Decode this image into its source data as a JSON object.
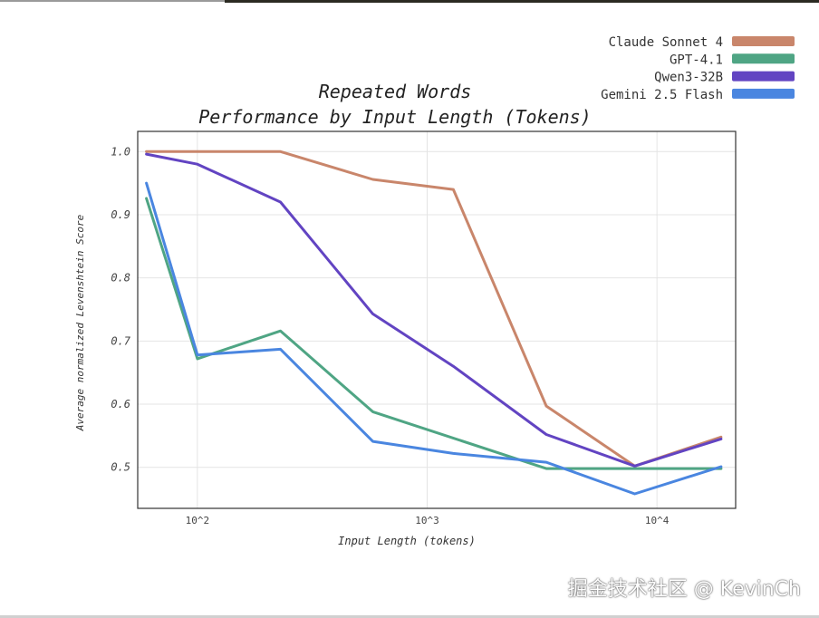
{
  "chart_data": {
    "type": "line",
    "title_lines": [
      "Repeated Words",
      "Performance by Input Length (Tokens)"
    ],
    "xlabel": "Input Length (tokens)",
    "ylabel": "Average normalized Levenshtein Score",
    "x_scale": "log",
    "xlim": [
      55,
      22000
    ],
    "ylim": [
      0.435,
      1.032
    ],
    "x_ticks": [
      100,
      1000,
      10000
    ],
    "x_tick_labels": [
      "10^2",
      "10^3",
      "10^4"
    ],
    "y_ticks": [
      0.5,
      0.6,
      0.7,
      0.8,
      0.9,
      1.0
    ],
    "y_tick_labels": [
      "0.5",
      "0.6",
      "0.7",
      "0.8",
      "0.9",
      "1.0"
    ],
    "grid": true,
    "legend_position": "top-right",
    "series": [
      {
        "name": "Claude Sonnet 4",
        "color": "#c9866b",
        "x": [
          60,
          100,
          230,
          580,
          1300,
          3300,
          8000,
          19000
        ],
        "y": [
          1.0,
          1.0,
          1.0,
          0.956,
          0.94,
          0.597,
          0.502,
          0.548
        ]
      },
      {
        "name": "GPT-4.1",
        "color": "#4fa584",
        "x": [
          60,
          100,
          230,
          580,
          3300,
          8000,
          19000
        ],
        "y": [
          0.926,
          0.672,
          0.716,
          0.588,
          0.498,
          0.498,
          0.498
        ]
      },
      {
        "name": "Qwen3-32B",
        "color": "#6244c2",
        "x": [
          60,
          100,
          230,
          580,
          1300,
          3300,
          8000,
          19000
        ],
        "y": [
          0.996,
          0.98,
          0.92,
          0.743,
          0.66,
          0.552,
          0.502,
          0.545
        ]
      },
      {
        "name": "Gemini 2.5 Flash",
        "color": "#4a86e0",
        "x": [
          60,
          100,
          230,
          580,
          1300,
          3300,
          8000,
          19000
        ],
        "y": [
          0.95,
          0.678,
          0.687,
          0.541,
          0.522,
          0.508,
          0.458,
          0.501
        ]
      }
    ]
  },
  "watermark": "掘金技术社区 @ KevinCh"
}
